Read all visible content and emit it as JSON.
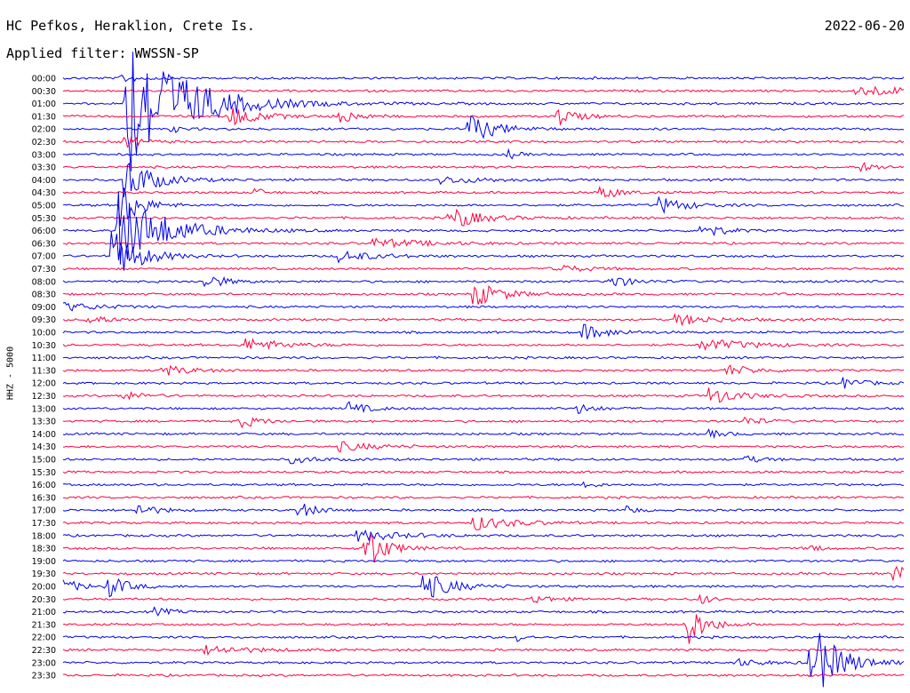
{
  "header": {
    "station": "HC Pefkos, Heraklion, Crete Is.",
    "date": "2022-06-20",
    "filter": "Applied filter: WWSSN-SP",
    "channel": "HHZ - 5000"
  },
  "trace_colors": {
    "even": "#0000ee",
    "odd": "#ff0040"
  },
  "rows": [
    "00:00",
    "00:30",
    "01:00",
    "01:30",
    "02:00",
    "02:30",
    "03:00",
    "03:30",
    "04:00",
    "04:30",
    "05:00",
    "05:30",
    "06:00",
    "06:30",
    "07:00",
    "07:30",
    "08:00",
    "08:30",
    "09:00",
    "09:30",
    "10:00",
    "10:30",
    "11:00",
    "11:30",
    "12:00",
    "12:30",
    "13:00",
    "13:30",
    "14:00",
    "14:30",
    "15:00",
    "15:30",
    "16:00",
    "16:30",
    "17:00",
    "17:30",
    "18:00",
    "18:30",
    "19:00",
    "19:30",
    "20:00",
    "20:30",
    "21:00",
    "21:30",
    "22:00",
    "22:30",
    "23:00",
    "23:30"
  ],
  "events": [
    {
      "row": 0,
      "t": 0.07,
      "amp": 5,
      "dur": 0.02
    },
    {
      "row": 1,
      "t": 0.945,
      "amp": 7,
      "dur": 0.05
    },
    {
      "row": 2,
      "t": 0.075,
      "amp": 90,
      "dur": 0.06
    },
    {
      "row": 3,
      "t": 0.2,
      "amp": 12,
      "dur": 0.03
    },
    {
      "row": 3,
      "t": 0.33,
      "amp": 8,
      "dur": 0.02
    },
    {
      "row": 3,
      "t": 0.59,
      "amp": 10,
      "dur": 0.02
    },
    {
      "row": 4,
      "t": 0.13,
      "amp": 4,
      "dur": 0.01
    },
    {
      "row": 4,
      "t": 0.48,
      "amp": 18,
      "dur": 0.03
    },
    {
      "row": 5,
      "t": 0.075,
      "amp": 6,
      "dur": 0.02
    },
    {
      "row": 6,
      "t": 0.53,
      "amp": 5,
      "dur": 0.01
    },
    {
      "row": 7,
      "t": 0.95,
      "amp": 5,
      "dur": 0.02
    },
    {
      "row": 8,
      "t": 0.45,
      "amp": 4,
      "dur": 0.05
    },
    {
      "row": 8,
      "t": 0.075,
      "amp": 25,
      "dur": 0.03
    },
    {
      "row": 9,
      "t": 0.23,
      "amp": 5,
      "dur": 0.01
    },
    {
      "row": 9,
      "t": 0.64,
      "amp": 8,
      "dur": 0.02
    },
    {
      "row": 10,
      "t": 0.07,
      "amp": 28,
      "dur": 0.02
    },
    {
      "row": 10,
      "t": 0.71,
      "amp": 9,
      "dur": 0.03
    },
    {
      "row": 11,
      "t": 0.47,
      "amp": 8,
      "dur": 0.02
    },
    {
      "row": 11,
      "t": 0.46,
      "amp": 4,
      "dur": 0.05
    },
    {
      "row": 12,
      "t": 0.065,
      "amp": 45,
      "dur": 0.05
    },
    {
      "row": 12,
      "t": 0.76,
      "amp": 10,
      "dur": 0.02
    },
    {
      "row": 13,
      "t": 0.37,
      "amp": 5,
      "dur": 0.06
    },
    {
      "row": 14,
      "t": 0.06,
      "amp": 28,
      "dur": 0.03
    },
    {
      "row": 14,
      "t": 0.33,
      "amp": 6,
      "dur": 0.04
    },
    {
      "row": 15,
      "t": 0.58,
      "amp": 6,
      "dur": 0.03
    },
    {
      "row": 16,
      "t": 0.17,
      "amp": 9,
      "dur": 0.02
    },
    {
      "row": 16,
      "t": 0.65,
      "amp": 9,
      "dur": 0.02
    },
    {
      "row": 17,
      "t": 0.49,
      "amp": 14,
      "dur": 0.03
    },
    {
      "row": 18,
      "t": 0.0,
      "amp": 5,
      "dur": 0.04
    },
    {
      "row": 19,
      "t": 0.03,
      "amp": 6,
      "dur": 0.02
    },
    {
      "row": 19,
      "t": 0.73,
      "amp": 6,
      "dur": 0.04
    },
    {
      "row": 20,
      "t": 0.62,
      "amp": 8,
      "dur": 0.03
    },
    {
      "row": 21,
      "t": 0.22,
      "amp": 7,
      "dur": 0.04
    },
    {
      "row": 21,
      "t": 0.76,
      "amp": 7,
      "dur": 0.05
    },
    {
      "row": 23,
      "t": 0.12,
      "amp": 6,
      "dur": 0.03
    },
    {
      "row": 23,
      "t": 0.79,
      "amp": 6,
      "dur": 0.03
    },
    {
      "row": 24,
      "t": 0.93,
      "amp": 6,
      "dur": 0.02
    },
    {
      "row": 25,
      "t": 0.07,
      "amp": 6,
      "dur": 0.02
    },
    {
      "row": 25,
      "t": 0.77,
      "amp": 10,
      "dur": 0.03
    },
    {
      "row": 26,
      "t": 0.34,
      "amp": 7,
      "dur": 0.02
    },
    {
      "row": 26,
      "t": 0.61,
      "amp": 6,
      "dur": 0.02
    },
    {
      "row": 27,
      "t": 0.21,
      "amp": 8,
      "dur": 0.02
    },
    {
      "row": 27,
      "t": 0.81,
      "amp": 5,
      "dur": 0.02
    },
    {
      "row": 28,
      "t": 0.77,
      "amp": 4,
      "dur": 0.02
    },
    {
      "row": 29,
      "t": 0.33,
      "amp": 5,
      "dur": 0.04
    },
    {
      "row": 30,
      "t": 0.27,
      "amp": 4,
      "dur": 0.03
    },
    {
      "row": 30,
      "t": 0.81,
      "amp": 4,
      "dur": 0.02
    },
    {
      "row": 32,
      "t": 0.62,
      "amp": 6,
      "dur": 0.01
    },
    {
      "row": 34,
      "t": 0.09,
      "amp": 7,
      "dur": 0.02
    },
    {
      "row": 34,
      "t": 0.28,
      "amp": 9,
      "dur": 0.02
    },
    {
      "row": 34,
      "t": 0.67,
      "amp": 6,
      "dur": 0.01
    },
    {
      "row": 35,
      "t": 0.49,
      "amp": 8,
      "dur": 0.04
    },
    {
      "row": 36,
      "t": 0.35,
      "amp": 6,
      "dur": 0.05
    },
    {
      "row": 37,
      "t": 0.36,
      "amp": 28,
      "dur": 0.02
    },
    {
      "row": 37,
      "t": 0.89,
      "amp": 5,
      "dur": 0.01
    },
    {
      "row": 39,
      "t": 0.99,
      "amp": 10,
      "dur": 0.02
    },
    {
      "row": 40,
      "t": 0.0,
      "amp": 8,
      "dur": 0.02
    },
    {
      "row": 40,
      "t": 0.055,
      "amp": 12,
      "dur": 0.02
    },
    {
      "row": 40,
      "t": 0.43,
      "amp": 16,
      "dur": 0.03
    },
    {
      "row": 41,
      "t": 0.56,
      "amp": 5,
      "dur": 0.02
    },
    {
      "row": 41,
      "t": 0.76,
      "amp": 6,
      "dur": 0.01
    },
    {
      "row": 42,
      "t": 0.11,
      "amp": 4,
      "dur": 0.02
    },
    {
      "row": 43,
      "t": 0.74,
      "amp": 28,
      "dur": 0.02
    },
    {
      "row": 44,
      "t": 0.54,
      "amp": 5,
      "dur": 0.01
    },
    {
      "row": 45,
      "t": 0.17,
      "amp": 5,
      "dur": 0.05
    },
    {
      "row": 46,
      "t": 0.8,
      "amp": 4,
      "dur": 0.03
    },
    {
      "row": 46,
      "t": 0.89,
      "amp": 45,
      "dur": 0.03
    }
  ]
}
